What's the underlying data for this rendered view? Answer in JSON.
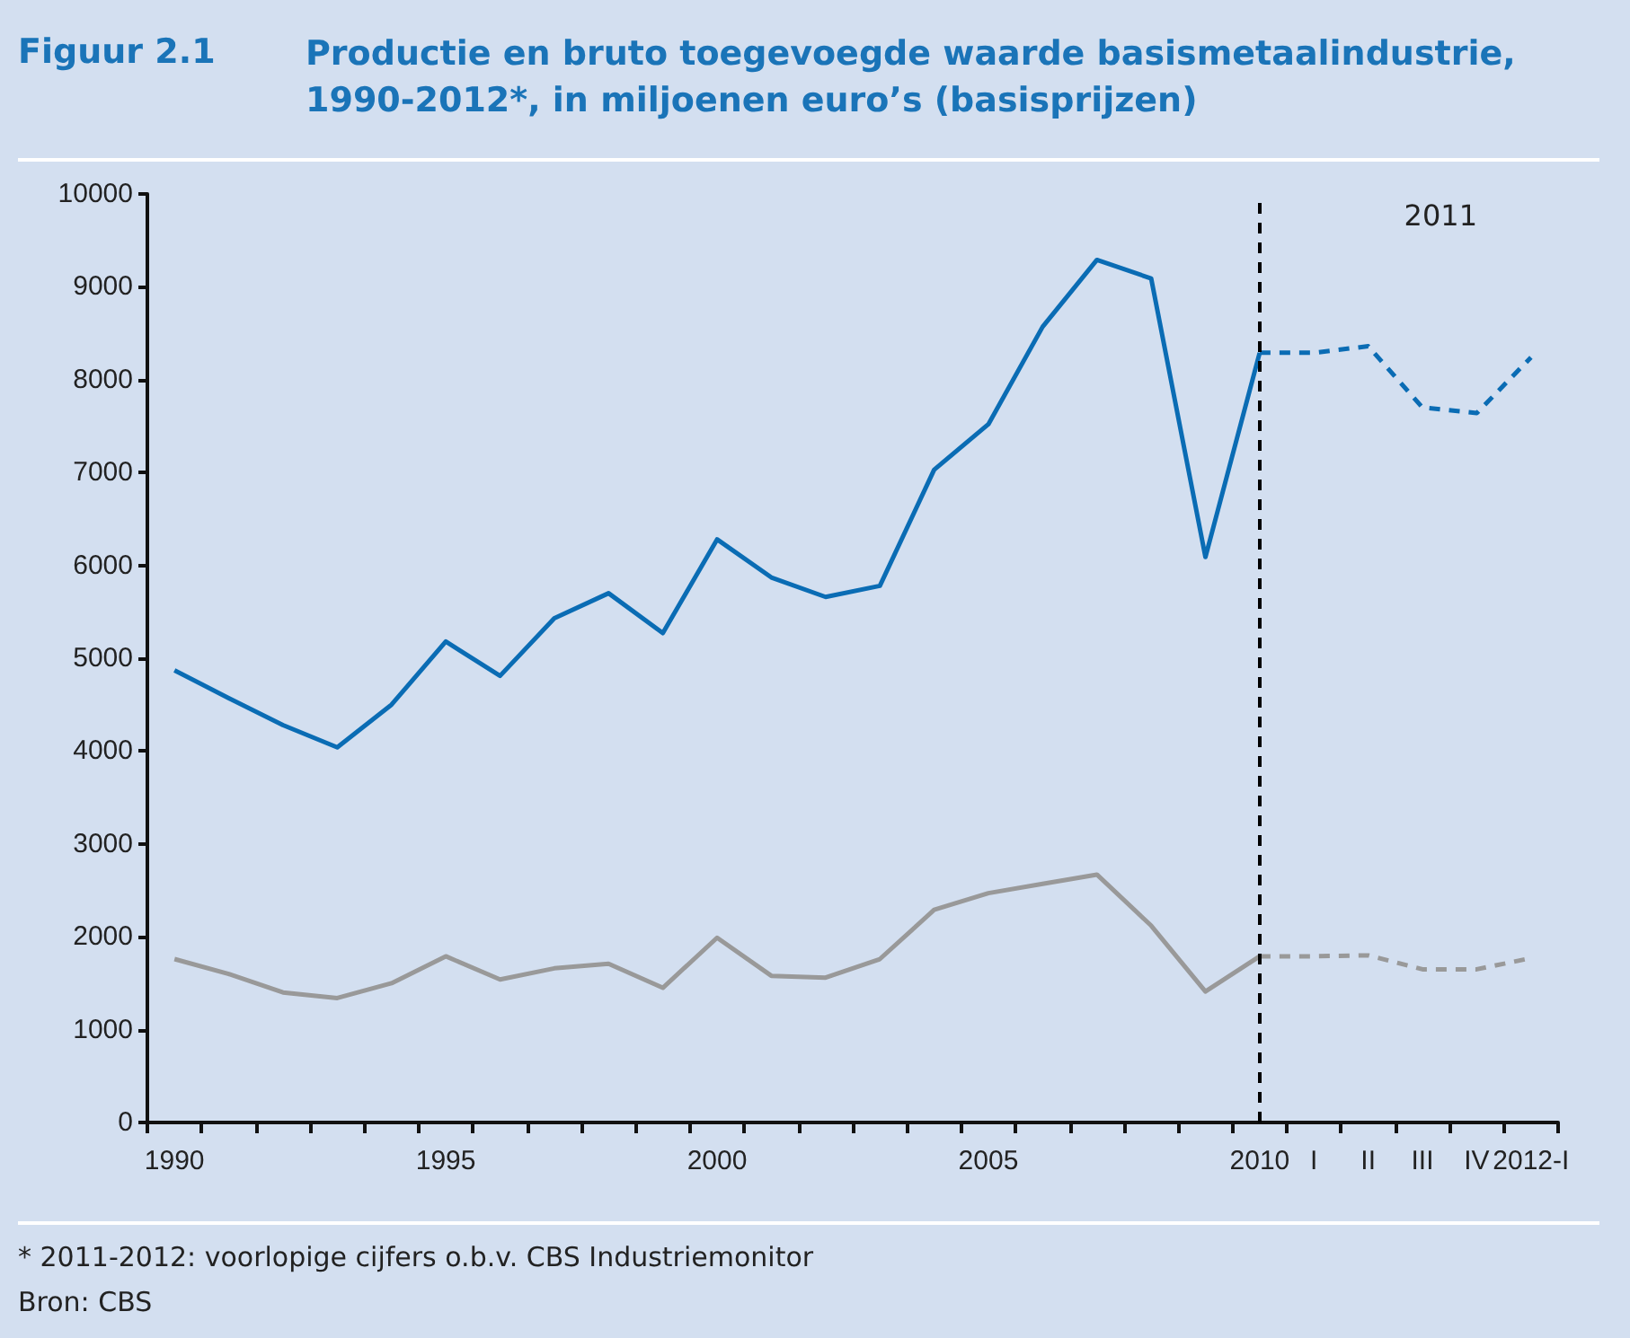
{
  "chart_data": {
    "type": "line",
    "title": "Figuur 2.1",
    "subtitle": "Productie en bruto toegevoegde waarde basismetaalindustrie, 1990-2012*, in miljoenen euro’s (basisprijzen)",
    "categories": [
      "1990",
      null,
      null,
      null,
      null,
      "1995",
      null,
      null,
      null,
      null,
      "2000",
      null,
      null,
      null,
      null,
      "2005",
      null,
      null,
      null,
      null,
      "2010",
      "I",
      "II",
      "III",
      "IV",
      "2012-I"
    ],
    "series": [
      {
        "color": "#0a6cb4",
        "line_style": "solid",
        "values": [
          4870,
          4570,
          4280,
          4040,
          4500,
          5180,
          4810,
          5430,
          5700,
          5270,
          6280,
          5870,
          5660,
          5780,
          7030,
          7520,
          8570,
          9290,
          9090,
          6090,
          8290,
          null,
          null,
          null,
          null,
          null
        ]
      },
      {
        "color": "#0a6cb4",
        "line_style": "dashed",
        "values": [
          null,
          null,
          null,
          null,
          null,
          null,
          null,
          null,
          null,
          null,
          null,
          null,
          null,
          null,
          null,
          null,
          null,
          null,
          null,
          null,
          8290,
          8290,
          8360,
          7700,
          7640,
          8240
        ]
      },
      {
        "color": "#999999",
        "line_style": "solid",
        "values": [
          1760,
          1600,
          1400,
          1340,
          1500,
          1790,
          1540,
          1660,
          1710,
          1450,
          1990,
          1580,
          1560,
          1760,
          2290,
          2470,
          2570,
          2670,
          2120,
          1410,
          1790,
          null,
          null,
          null,
          null,
          null
        ]
      },
      {
        "color": "#999999",
        "line_style": "dashed",
        "values": [
          null,
          null,
          null,
          null,
          null,
          null,
          null,
          null,
          null,
          null,
          null,
          null,
          null,
          null,
          null,
          null,
          null,
          null,
          null,
          null,
          1790,
          1790,
          1800,
          1650,
          1650,
          1770
        ]
      }
    ],
    "ylim": [
      0,
      10000
    ],
    "yticks": [
      0,
      1000,
      2000,
      3000,
      4000,
      5000,
      6000,
      7000,
      8000,
      9000,
      10000
    ],
    "ref_lines": [
      {
        "axis": "x",
        "value": "2010",
        "color": "#000000",
        "line_style": "dashed"
      }
    ],
    "annotations": [
      "2011",
      "* 2011-2012: voorlopige cijfers o.b.v. CBS Industriemonitor",
      "Bron: CBS"
    ],
    "grid": false,
    "marker": "none"
  }
}
